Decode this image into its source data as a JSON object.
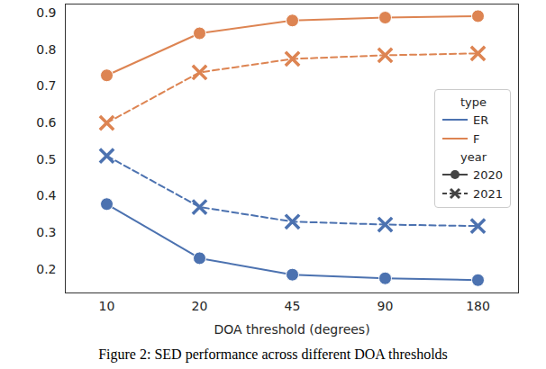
{
  "chart_data": {
    "type": "line",
    "x_label": "DOA threshold (degrees)",
    "caption": "Figure 2: SED performance across different DOA thresholds",
    "categories": [
      "10",
      "20",
      "45",
      "90",
      "180"
    ],
    "ylim": [
      0.135,
      0.925
    ],
    "yticks": [
      0.2,
      0.3,
      0.4,
      0.5,
      0.6,
      0.7,
      0.8,
      0.9
    ],
    "grid": false,
    "legend": "center right",
    "legend_groups": [
      {
        "title": "type",
        "entries": [
          "ER",
          "F"
        ]
      },
      {
        "title": "year",
        "entries": [
          "2020",
          "2021"
        ]
      }
    ],
    "series": [
      {
        "name": "ER",
        "group": "2020",
        "color": "#4c72b0",
        "marker": "circle",
        "line_style": "solid",
        "values": [
          0.378,
          0.23,
          0.185,
          0.175,
          0.17
        ]
      },
      {
        "name": "ER",
        "group": "2021",
        "color": "#4c72b0",
        "marker": "x",
        "line_style": "dashed",
        "values": [
          0.51,
          0.37,
          0.33,
          0.322,
          0.318
        ]
      },
      {
        "name": "F",
        "group": "2020",
        "color": "#dd8452",
        "marker": "circle",
        "line_style": "solid",
        "values": [
          0.73,
          0.845,
          0.88,
          0.888,
          0.892
        ]
      },
      {
        "name": "F",
        "group": "2021",
        "color": "#dd8452",
        "marker": "x",
        "line_style": "dashed",
        "values": [
          0.6,
          0.738,
          0.775,
          0.785,
          0.79
        ]
      }
    ]
  }
}
